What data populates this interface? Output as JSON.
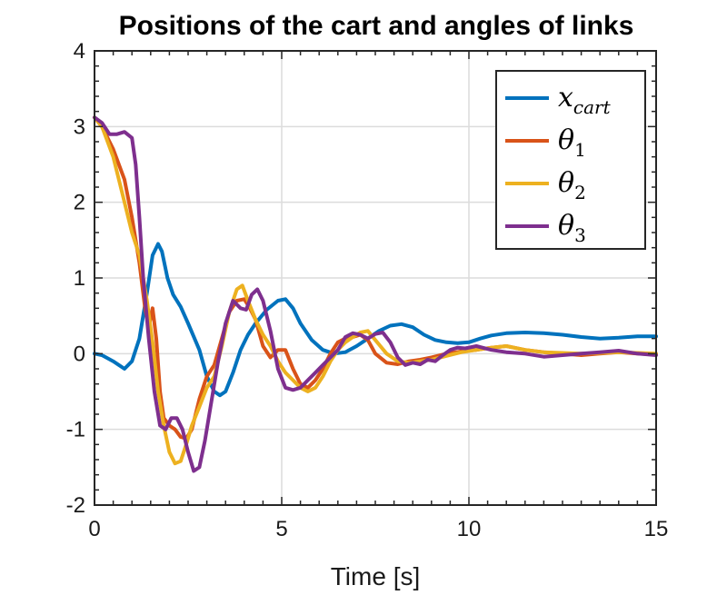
{
  "chart_data": {
    "type": "line",
    "title": "Positions of the cart and angles of links",
    "xlabel": "Time [s]",
    "ylabel": "",
    "xlim": [
      0,
      15
    ],
    "ylim": [
      -2,
      4
    ],
    "xticks": [
      "0",
      "5",
      "10",
      "15"
    ],
    "yticks": [
      "-2",
      "-1",
      "0",
      "1",
      "2",
      "3",
      "4"
    ],
    "grid": true,
    "legend_position": "top-right",
    "series": [
      {
        "name": "x_cart",
        "legend_main": "x",
        "legend_sub": "cart",
        "color": "#0072BD",
        "x": [
          0,
          0.2,
          0.5,
          0.8,
          1.0,
          1.2,
          1.4,
          1.55,
          1.7,
          1.8,
          1.95,
          2.1,
          2.3,
          2.5,
          2.8,
          3.0,
          3.2,
          3.35,
          3.5,
          3.7,
          3.9,
          4.1,
          4.3,
          4.6,
          4.9,
          5.1,
          5.3,
          5.5,
          5.8,
          6.1,
          6.4,
          6.7,
          7.0,
          7.3,
          7.6,
          7.9,
          8.2,
          8.5,
          8.8,
          9.1,
          9.4,
          9.7,
          10.0,
          10.3,
          10.6,
          11.0,
          11.5,
          12.0,
          12.5,
          13.0,
          13.5,
          14.0,
          14.5,
          15.0
        ],
        "y": [
          0.0,
          -0.02,
          -0.1,
          -0.2,
          -0.1,
          0.2,
          0.8,
          1.3,
          1.45,
          1.35,
          1.0,
          0.78,
          0.62,
          0.4,
          0.05,
          -0.3,
          -0.5,
          -0.55,
          -0.5,
          -0.25,
          0.05,
          0.25,
          0.4,
          0.58,
          0.7,
          0.72,
          0.6,
          0.4,
          0.18,
          0.05,
          0.0,
          0.02,
          0.1,
          0.2,
          0.3,
          0.37,
          0.39,
          0.35,
          0.25,
          0.18,
          0.15,
          0.14,
          0.15,
          0.2,
          0.24,
          0.27,
          0.28,
          0.27,
          0.25,
          0.22,
          0.2,
          0.21,
          0.23,
          0.23
        ]
      },
      {
        "name": "θ_1",
        "legend_main": "θ",
        "legend_sub": "1",
        "color": "#D95319",
        "x": [
          0,
          0.2,
          0.5,
          0.8,
          1.0,
          1.2,
          1.35,
          1.45,
          1.55,
          1.65,
          1.75,
          1.85,
          2.0,
          2.15,
          2.3,
          2.45,
          2.6,
          2.8,
          3.0,
          3.2,
          3.4,
          3.6,
          3.8,
          4.0,
          4.15,
          4.3,
          4.5,
          4.7,
          4.9,
          5.1,
          5.3,
          5.5,
          5.7,
          5.9,
          6.1,
          6.3,
          6.5,
          6.7,
          6.9,
          7.1,
          7.3,
          7.5,
          7.8,
          8.1,
          8.4,
          8.7,
          9.0,
          9.4,
          9.8,
          10.2,
          10.6,
          11.0,
          11.5,
          12.0,
          12.5,
          13.0,
          13.5,
          14.0,
          14.5,
          15.0
        ],
        "y": [
          3.12,
          3.0,
          2.7,
          2.3,
          1.8,
          1.2,
          0.6,
          0.35,
          0.6,
          0.2,
          -0.5,
          -0.85,
          -0.95,
          -1.0,
          -1.1,
          -1.12,
          -1.0,
          -0.6,
          -0.3,
          -0.15,
          0.2,
          0.55,
          0.7,
          0.72,
          0.6,
          0.45,
          0.1,
          -0.05,
          0.05,
          0.05,
          -0.2,
          -0.4,
          -0.45,
          -0.35,
          -0.2,
          0.0,
          0.15,
          0.2,
          0.22,
          0.25,
          0.18,
          0.0,
          -0.12,
          -0.14,
          -0.1,
          -0.08,
          -0.05,
          0.0,
          0.03,
          0.05,
          0.08,
          0.1,
          0.05,
          0.02,
          0.0,
          -0.02,
          0.0,
          0.02,
          0.0,
          -0.01
        ]
      },
      {
        "name": "θ_2",
        "legend_main": "θ",
        "legend_sub": "2",
        "color": "#EDB120",
        "x": [
          0,
          0.2,
          0.5,
          0.8,
          1.0,
          1.2,
          1.4,
          1.55,
          1.7,
          1.85,
          2.0,
          2.15,
          2.3,
          2.45,
          2.6,
          2.8,
          3.0,
          3.2,
          3.4,
          3.6,
          3.8,
          3.95,
          4.1,
          4.3,
          4.5,
          4.7,
          4.9,
          5.1,
          5.3,
          5.5,
          5.7,
          5.9,
          6.1,
          6.3,
          6.5,
          6.7,
          6.9,
          7.1,
          7.3,
          7.5,
          7.8,
          8.1,
          8.4,
          8.7,
          9.0,
          9.4,
          9.8,
          10.2,
          10.6,
          11.0,
          11.5,
          12.0,
          12.5,
          13.0,
          13.5,
          14.0,
          14.5,
          15.0
        ],
        "y": [
          3.12,
          3.0,
          2.6,
          2.0,
          1.6,
          1.3,
          0.7,
          0.15,
          -0.5,
          -0.95,
          -1.3,
          -1.45,
          -1.42,
          -1.2,
          -0.95,
          -0.7,
          -0.45,
          -0.3,
          0.1,
          0.55,
          0.85,
          0.9,
          0.7,
          0.45,
          0.25,
          0.1,
          -0.1,
          -0.25,
          -0.35,
          -0.45,
          -0.5,
          -0.45,
          -0.3,
          -0.1,
          0.05,
          0.15,
          0.22,
          0.28,
          0.3,
          0.18,
          0.0,
          -0.1,
          -0.12,
          -0.1,
          -0.08,
          -0.03,
          0.02,
          0.05,
          0.08,
          0.1,
          0.05,
          0.02,
          0.01,
          0.0,
          0.01,
          0.02,
          0.01,
          0.0
        ]
      },
      {
        "name": "θ_3",
        "legend_main": "θ",
        "legend_sub": "3",
        "color": "#7E2F8E",
        "x": [
          0,
          0.2,
          0.4,
          0.6,
          0.8,
          1.0,
          1.1,
          1.2,
          1.3,
          1.45,
          1.6,
          1.75,
          1.9,
          2.05,
          2.2,
          2.35,
          2.5,
          2.65,
          2.8,
          2.95,
          3.1,
          3.3,
          3.5,
          3.7,
          3.9,
          4.05,
          4.2,
          4.35,
          4.5,
          4.7,
          4.9,
          5.1,
          5.3,
          5.5,
          5.7,
          5.9,
          6.1,
          6.3,
          6.5,
          6.7,
          6.9,
          7.1,
          7.3,
          7.5,
          7.7,
          7.9,
          8.1,
          8.3,
          8.5,
          8.7,
          8.9,
          9.1,
          9.3,
          9.5,
          9.7,
          9.9,
          10.2,
          10.6,
          11.0,
          11.5,
          12.0,
          12.5,
          13.0,
          13.5,
          14.0,
          14.5,
          15.0
        ],
        "y": [
          3.12,
          3.05,
          2.9,
          2.9,
          2.93,
          2.85,
          2.5,
          1.8,
          1.0,
          0.2,
          -0.5,
          -0.95,
          -1.0,
          -0.85,
          -0.85,
          -1.0,
          -1.3,
          -1.55,
          -1.5,
          -1.15,
          -0.7,
          -0.1,
          0.4,
          0.7,
          0.6,
          0.58,
          0.78,
          0.85,
          0.7,
          0.3,
          -0.2,
          -0.45,
          -0.48,
          -0.45,
          -0.35,
          -0.25,
          -0.15,
          -0.05,
          0.05,
          0.22,
          0.27,
          0.25,
          0.2,
          0.26,
          0.28,
          0.15,
          -0.05,
          -0.15,
          -0.12,
          -0.14,
          -0.08,
          -0.1,
          -0.02,
          0.05,
          0.08,
          0.07,
          0.1,
          0.05,
          0.02,
          0.0,
          -0.04,
          -0.02,
          0.0,
          0.02,
          0.04,
          0.0,
          -0.02
        ]
      }
    ]
  }
}
